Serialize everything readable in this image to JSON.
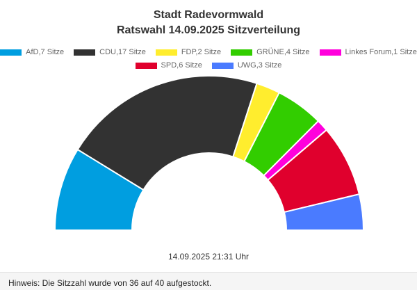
{
  "chart_data": {
    "type": "pie",
    "subtype": "parliament-semicircle",
    "title": "Stadt Radevormwald",
    "subtitle": "Ratswahl 14.09.2025 Sitzverteilung",
    "legend_position": "top",
    "series": [
      {
        "name": "AfD,7 Sitze",
        "party": "AfD",
        "value": 7,
        "color": "#009ee0"
      },
      {
        "name": "CDU,17 Sitze",
        "party": "CDU",
        "value": 17,
        "color": "#323232"
      },
      {
        "name": "FDP,2 Sitze",
        "party": "FDP",
        "value": 2,
        "color": "#ffed2e"
      },
      {
        "name": "GRÜNE,4 Sitze",
        "party": "GRÜNE",
        "value": 4,
        "color": "#32cd00"
      },
      {
        "name": "Linkes Forum,1 Sitze",
        "party": "Linkes Forum",
        "value": 1,
        "color": "#ff00dc"
      },
      {
        "name": "SPD,6 Sitze",
        "party": "SPD",
        "value": 6,
        "color": "#e0002d"
      },
      {
        "name": "UWG,3 Sitze",
        "party": "UWG",
        "value": 3,
        "color": "#4a7bff"
      }
    ]
  },
  "timestamp": "14.09.2025 21:31 Uhr",
  "note": "Hinweis: Die Sitzzahl wurde von 36 auf 40 aufgestockt."
}
